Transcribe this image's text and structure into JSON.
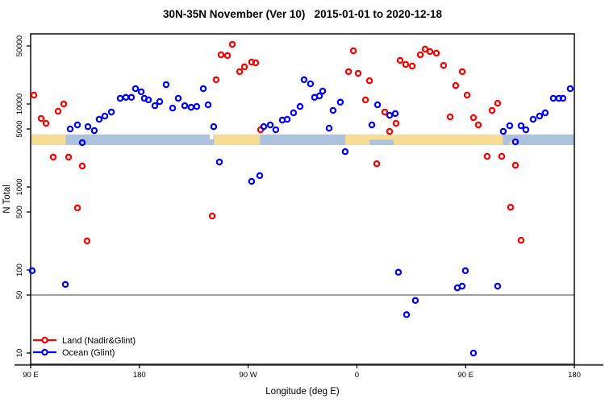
{
  "title": "30N-35N November (Ver 10)   2015-01-01 to 2020-12-18",
  "chart_data": {
    "type": "scatter",
    "title": "30N-35N November (Ver 10)   2015-01-01 to 2020-12-18",
    "xlabel": "Longitude (deg E)",
    "ylabel": "N Total",
    "x_axis": {
      "note": "longitude axis wraps eastward from 90E over 450 degrees",
      "span_deg": 450,
      "ticks": [
        {
          "t": 0,
          "label": "90 E"
        },
        {
          "t": 90,
          "label": "180"
        },
        {
          "t": 180,
          "label": "90 W"
        },
        {
          "t": 270,
          "label": "0"
        },
        {
          "t": 360,
          "label": "90 E"
        },
        {
          "t": 450,
          "label": "180"
        }
      ]
    },
    "y_axis": {
      "scale": "log",
      "ticks": [
        10,
        50,
        100,
        500,
        1000,
        5000,
        10000,
        50000
      ],
      "range": [
        7,
        70000
      ]
    },
    "reference_line_y": 50,
    "grid": "off",
    "legend_position": "bottom-left",
    "surface_band": {
      "value_top": 4300,
      "value_bottom": 3200,
      "ocean_color": "#ADC2DC",
      "land_color": "#F6DC94",
      "land_segments": [
        [
          0,
          29
        ],
        [
          151.8,
          189.8
        ],
        [
          260.5,
          390.8
        ]
      ],
      "ocean_overlays": [
        [
          280.5,
          300.5
        ]
      ],
      "coast_gap": [
        148.2,
        151.2
      ],
      "mixed_patches": [
        [
          396,
          402
        ]
      ]
    },
    "series": [
      {
        "name": "Land (Nadir&Glint)",
        "color": "#FF0000",
        "points": [
          [
            2.7,
            12800
          ],
          [
            8.7,
            6690
          ],
          [
            12.7,
            5850
          ],
          [
            18.7,
            2290
          ],
          [
            22.7,
            8180
          ],
          [
            27.4,
            10000
          ],
          [
            31.4,
            2290
          ],
          [
            38.7,
            560
          ],
          [
            42.7,
            1790
          ],
          [
            46.7,
            224
          ],
          [
            150.2,
            447
          ],
          [
            153.5,
            19600
          ],
          [
            157.6,
            39100
          ],
          [
            162.9,
            38300
          ],
          [
            166.9,
            52300
          ],
          [
            172.9,
            24500
          ],
          [
            176.9,
            28000
          ],
          [
            182.9,
            32000
          ],
          [
            186.3,
            31300
          ],
          [
            190.3,
            4890
          ],
          [
            263.1,
            24500
          ],
          [
            267.1,
            43700
          ],
          [
            271.1,
            23400
          ],
          [
            277.1,
            11200
          ],
          [
            280.4,
            19100
          ],
          [
            286.4,
            1910
          ],
          [
            293.1,
            8000
          ],
          [
            297.1,
            4680
          ],
          [
            302.4,
            5850
          ],
          [
            305.8,
            33500
          ],
          [
            310.4,
            29900
          ],
          [
            315.8,
            28600
          ],
          [
            322.5,
            39100
          ],
          [
            326.5,
            45800
          ],
          [
            330.5,
            42800
          ],
          [
            335.8,
            40900
          ],
          [
            341.8,
            29200
          ],
          [
            347.2,
            6990
          ],
          [
            351.8,
            16700
          ],
          [
            357.2,
            24500
          ],
          [
            361.2,
            12800
          ],
          [
            366.5,
            6840
          ],
          [
            370.5,
            5590
          ],
          [
            377.8,
            2340
          ],
          [
            381.9,
            8370
          ],
          [
            386.5,
            10200
          ],
          [
            389.9,
            2340
          ],
          [
            397.2,
            570
          ],
          [
            401.2,
            1830
          ],
          [
            405.9,
            228
          ]
        ]
      },
      {
        "name": "Ocean (Glint)",
        "color": "#0000FF",
        "points": [
          [
            1.3,
            98
          ],
          [
            28.7,
            67
          ],
          [
            32.7,
            5000
          ],
          [
            38.7,
            5590
          ],
          [
            42.7,
            3420
          ],
          [
            47.4,
            5340
          ],
          [
            52.7,
            4780
          ],
          [
            56.7,
            6540
          ],
          [
            61.4,
            7150
          ],
          [
            66.8,
            8000
          ],
          [
            74.1,
            11700
          ],
          [
            78.8,
            12000
          ],
          [
            83.4,
            12000
          ],
          [
            86.8,
            15300
          ],
          [
            91.5,
            14000
          ],
          [
            94.1,
            11700
          ],
          [
            97.5,
            11200
          ],
          [
            102.8,
            9550
          ],
          [
            106.8,
            10700
          ],
          [
            112.1,
            17100
          ],
          [
            117.5,
            8930
          ],
          [
            122.2,
            11700
          ],
          [
            127.5,
            9550
          ],
          [
            132.8,
            9120
          ],
          [
            137.5,
            9330
          ],
          [
            142.9,
            15300
          ],
          [
            146.9,
            9770
          ],
          [
            151.5,
            5340
          ],
          [
            156.2,
            2000
          ],
          [
            182.9,
            1170
          ],
          [
            189.6,
            1370
          ],
          [
            192.9,
            5340
          ],
          [
            198.3,
            5590
          ],
          [
            202.9,
            4890
          ],
          [
            208.3,
            6390
          ],
          [
            212.3,
            6540
          ],
          [
            217.6,
            7820
          ],
          [
            223.0,
            9330
          ],
          [
            226.3,
            19600
          ],
          [
            231.6,
            17500
          ],
          [
            235.0,
            12000
          ],
          [
            239.0,
            12500
          ],
          [
            241.7,
            14300
          ],
          [
            247.0,
            5110
          ],
          [
            250.3,
            8370
          ],
          [
            256.3,
            10500
          ],
          [
            260.3,
            2670
          ],
          [
            282.4,
            5590
          ],
          [
            287.1,
            9770
          ],
          [
            297.1,
            7320
          ],
          [
            301.8,
            7660
          ],
          [
            304.4,
            94
          ],
          [
            311.1,
            29
          ],
          [
            318.4,
            43
          ],
          [
            353.1,
            61
          ],
          [
            357.1,
            64
          ],
          [
            359.8,
            98
          ],
          [
            366.5,
            10
          ],
          [
            386.5,
            64
          ],
          [
            391.2,
            4680
          ],
          [
            396.5,
            5470
          ],
          [
            401.2,
            3500
          ],
          [
            405.9,
            5470
          ],
          [
            409.9,
            4890
          ],
          [
            415.9,
            6540
          ],
          [
            421.2,
            7150
          ],
          [
            425.9,
            7820
          ],
          [
            432.6,
            11700
          ],
          [
            437.2,
            11700
          ],
          [
            440.6,
            11700
          ],
          [
            446.6,
            15300
          ]
        ]
      }
    ]
  },
  "colors": {
    "axis_line": "#3F3F3F",
    "reference_line": "#808080",
    "plot_border": "#1A1A1A"
  }
}
